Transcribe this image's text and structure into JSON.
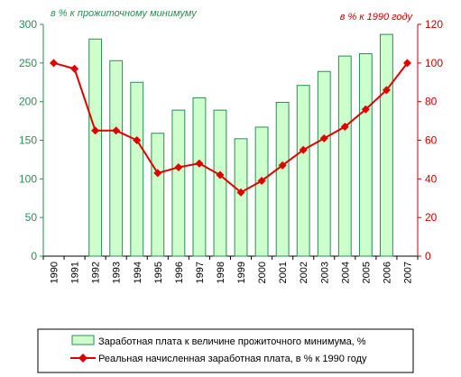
{
  "chart_data": {
    "type": "bar+line",
    "categories": [
      "1990",
      "1991",
      "1992",
      "1993",
      "1994",
      "1995",
      "1996",
      "1997",
      "1998",
      "1999",
      "2000",
      "2001",
      "2002",
      "2003",
      "2004",
      "2005",
      "2006",
      "2007"
    ],
    "series": [
      {
        "name": "Заработная плата к величине прожиточного минимума, %",
        "type": "bar",
        "axis": "left",
        "values": [
          null,
          null,
          281,
          253,
          225,
          159,
          189,
          205,
          189,
          152,
          167,
          199,
          221,
          239,
          259,
          262,
          287,
          null
        ]
      },
      {
        "name": "Реальная начисленная заработная плата, в % к 1990 году",
        "type": "line",
        "axis": "right",
        "values": [
          100,
          97,
          65,
          65,
          60,
          43,
          46,
          48,
          42,
          33,
          39,
          47,
          55,
          61,
          67,
          76,
          86,
          100
        ]
      }
    ],
    "left_axis": {
      "label": "в % к прожиточному минимуму",
      "ylim": [
        0,
        300
      ],
      "ticks": [
        0,
        50,
        100,
        150,
        200,
        250,
        300
      ],
      "color": "#2e8b57"
    },
    "right_axis": {
      "label": "в % к 1990 году",
      "ylim": [
        0,
        120
      ],
      "ticks": [
        0,
        20,
        40,
        60,
        80,
        100,
        120
      ],
      "color": "#cc0000"
    },
    "legend_position": "bottom",
    "grid": false
  }
}
